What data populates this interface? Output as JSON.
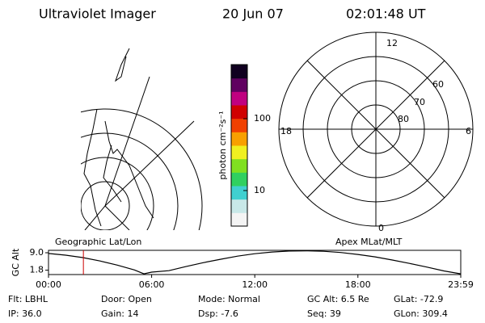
{
  "header": {
    "title": "Ultraviolet Imager",
    "date": "20 Jun 07",
    "time": "02:01:48 UT"
  },
  "colorbar": {
    "label": "photon cm⁻²s⁻¹",
    "range": [
      3.2,
      566
    ],
    "log": true,
    "ticks": [
      10,
      100
    ]
  },
  "polar": {
    "mlt_labels": [
      "12",
      "18",
      "6",
      "0"
    ],
    "lat_labels": [
      "60",
      "70",
      "80"
    ]
  },
  "chart_data": {
    "type": "line",
    "ylabel": "GC Alt",
    "left_label": "Geographic Lat/Lon",
    "right_label": "Apex MLat/MLT",
    "x": [
      0,
      1,
      2,
      3,
      4,
      5,
      5.55,
      6,
      7,
      8,
      9,
      10,
      11,
      12,
      13,
      14,
      15,
      16,
      17,
      18,
      19,
      20,
      21,
      22,
      23,
      23.98
    ],
    "values": [
      8.7,
      8.0,
      7.0,
      5.6,
      3.9,
      1.9,
      0.3,
      1.0,
      1.6,
      3.3,
      4.9,
      6.3,
      7.6,
      8.6,
      9.3,
      9.7,
      9.8,
      9.6,
      9.1,
      8.3,
      7.3,
      6.0,
      4.6,
      3.1,
      1.5,
      0.3
    ],
    "color": "#000000",
    "marker": 2.03,
    "marker_color": "#cc0000",
    "xlim": [
      0,
      23.983
    ],
    "ylim": [
      0,
      10
    ],
    "xticks": [
      {
        "value": 0,
        "label": "00:00"
      },
      {
        "value": 6,
        "label": "06:00"
      },
      {
        "value": 12,
        "label": "12:00"
      },
      {
        "value": 18,
        "label": "18:00"
      },
      {
        "value": 23.983,
        "label": "23:59"
      }
    ],
    "yticks": [
      {
        "value": 9,
        "label": "9.0"
      },
      1.8
    ]
  },
  "info": [
    [
      "Flt: LBHL",
      "IP: 36.0"
    ],
    [
      "Door: Open",
      "Gain: 14"
    ],
    [
      "Mode: Normal",
      "Dsp:    -7.6"
    ],
    [
      "GC Alt: 6.5 Re",
      "Seq: 39"
    ],
    [
      "GLat: -72.9",
      "GLon: 309.4"
    ]
  ]
}
